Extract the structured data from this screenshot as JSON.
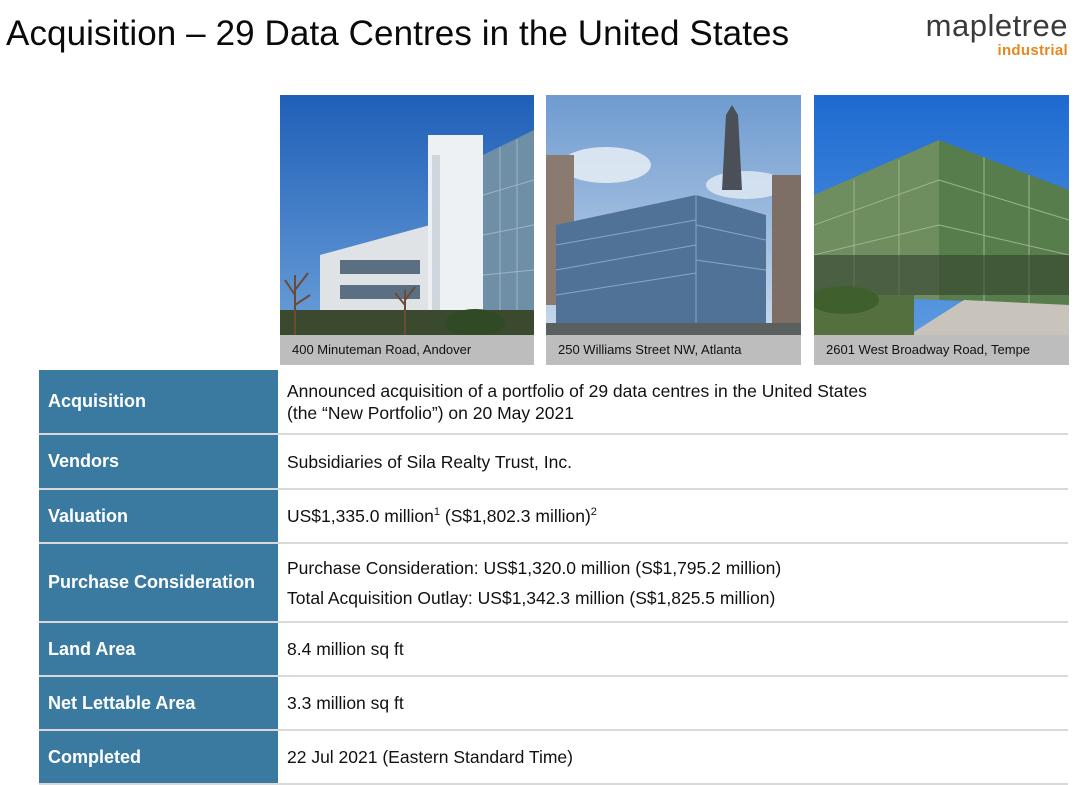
{
  "header": {
    "title": "Acquisition – 29 Data Centres in the United States",
    "logo_word": "mapletree",
    "logo_sub": "industrial"
  },
  "photos": [
    {
      "caption": "400 Minuteman Road, Andover"
    },
    {
      "caption": "250 Williams Street NW, Atlanta"
    },
    {
      "caption": "2601 West Broadway Road, Tempe"
    }
  ],
  "table": {
    "rows": [
      {
        "label": "Acquisition",
        "lines": [
          "Announced acquisition of a portfolio of 29 data centres in the United States",
          "(the “New Portfolio”) on 20 May 2021"
        ]
      },
      {
        "label": "Vendors",
        "lines": [
          "Subsidiaries of Sila Realty Trust, Inc."
        ]
      },
      {
        "label": "Valuation",
        "value_a": "US$1,335.0 million",
        "sup_a": "1",
        "value_b": " (S$1,802.3 million)",
        "sup_b": "2"
      },
      {
        "label": "Purchase Consideration",
        "lines": [
          "Purchase Consideration: US$1,320.0 million (S$1,795.2 million)",
          "Total Acquisition Outlay: US$1,342.3 million (S$1,825.5 million)"
        ]
      },
      {
        "label": "Land Area",
        "lines": [
          "8.4 million sq ft"
        ]
      },
      {
        "label": "Net Lettable Area",
        "lines": [
          "3.3 million sq ft"
        ]
      },
      {
        "label": "Completed",
        "lines": [
          "22 Jul 2021 (Eastern Standard Time)"
        ]
      }
    ]
  },
  "colors": {
    "label_bg": "#3a7aa0",
    "caption_bg": "#bdbdbd",
    "logo_accent": "#e8871e"
  }
}
